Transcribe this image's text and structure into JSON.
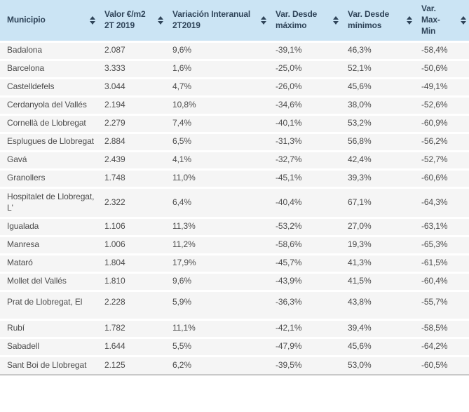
{
  "table": {
    "columns": [
      {
        "key": "municipio",
        "label": "Municipio"
      },
      {
        "key": "valor",
        "label": "Valor €/m2 2T 2019"
      },
      {
        "key": "variacion-interanual",
        "label": "Variación Interanual 2T2019"
      },
      {
        "key": "var-desde-maximo",
        "label": "Var. Desde máximo"
      },
      {
        "key": "var-desde-minimos",
        "label": "Var. Desde mínimos"
      },
      {
        "key": "var-max-min",
        "label": "Var. Max-Min"
      }
    ],
    "rows": [
      [
        "Badalona",
        "2.087",
        "9,6%",
        "-39,1%",
        "46,3%",
        "-58,4%"
      ],
      [
        "Barcelona",
        "3.333",
        "1,6%",
        "-25,0%",
        "52,1%",
        "-50,6%"
      ],
      [
        "Castelldefels",
        "3.044",
        "4,7%",
        "-26,0%",
        "45,6%",
        "-49,1%"
      ],
      [
        "Cerdanyola del Vallés",
        "2.194",
        "10,8%",
        "-34,6%",
        "38,0%",
        "-52,6%"
      ],
      [
        "Cornellà de Llobregat",
        "2.279",
        "7,4%",
        "-40,1%",
        "53,2%",
        "-60,9%"
      ],
      [
        "Esplugues de Llobregat",
        "2.884",
        "6,5%",
        "-31,3%",
        "56,8%",
        "-56,2%"
      ],
      [
        "Gavá",
        "2.439",
        "4,1%",
        "-32,7%",
        "42,4%",
        "-52,7%"
      ],
      [
        "Granollers",
        "1.748",
        "11,0%",
        "-45,1%",
        "39,3%",
        "-60,6%"
      ],
      [
        "Hospitalet de Llobregat, L'",
        "2.322",
        "6,4%",
        "-40,4%",
        "67,1%",
        "-64,3%"
      ],
      [
        "Igualada",
        "1.106",
        "11,3%",
        "-53,2%",
        "27,0%",
        "-63,1%"
      ],
      [
        "Manresa",
        "1.006",
        "11,2%",
        "-58,6%",
        "19,3%",
        "-65,3%"
      ],
      [
        "Mataró",
        "1.804",
        "17,9%",
        "-45,7%",
        "41,3%",
        "-61,5%"
      ],
      [
        "Mollet del Vallés",
        "1.810",
        "9,6%",
        "-43,9%",
        "41,5%",
        "-60,4%"
      ],
      [
        "Prat de Llobregat, El",
        "2.228",
        "5,9%",
        "-36,3%",
        "43,8%",
        "-55,7%"
      ],
      [
        "Rubí",
        "1.782",
        "11,1%",
        "-42,1%",
        "39,4%",
        "-58,5%"
      ],
      [
        "Sabadell",
        "1.644",
        "5,5%",
        "-47,9%",
        "45,6%",
        "-64,2%"
      ],
      [
        "Sant Boi de Llobregat",
        "2.125",
        "6,2%",
        "-39,5%",
        "53,0%",
        "-60,5%"
      ]
    ]
  },
  "colors": {
    "header_bg": "#cbe4f4",
    "header_text": "#2f4459",
    "row_bg": "#f5f5f5",
    "row_text": "#4c4c4c",
    "separator": "#ffffff",
    "border": "#c4c4c4"
  },
  "icons": {
    "sort": "up-down-arrows"
  }
}
